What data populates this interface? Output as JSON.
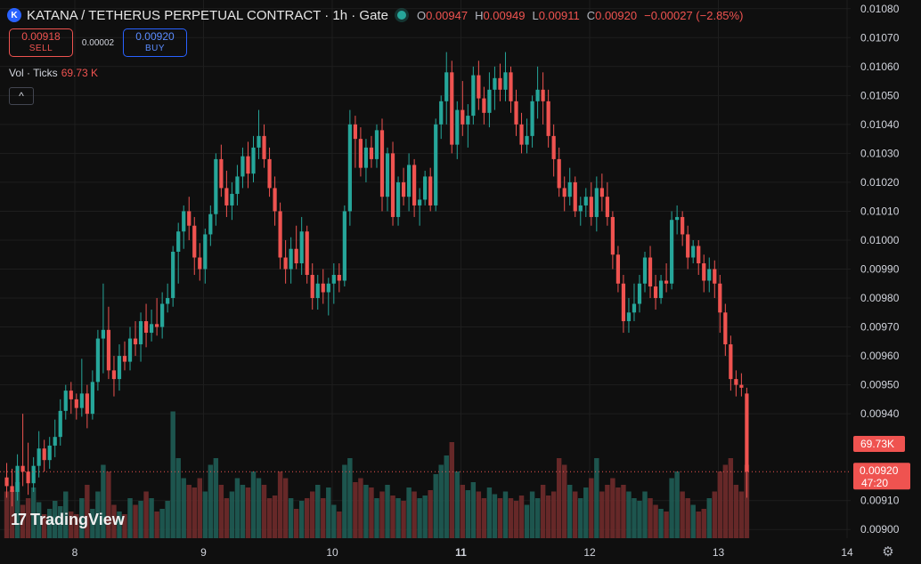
{
  "header": {
    "logo_letter": "K",
    "title": "KATANA / TETHERUS PERPETUAL CONTRACT · 1h · Gate",
    "ohlc": [
      {
        "k": "O",
        "v": "0.00947"
      },
      {
        "k": "H",
        "v": "0.00949"
      },
      {
        "k": "L",
        "v": "0.00911"
      },
      {
        "k": "C",
        "v": "0.00920"
      }
    ],
    "change": "−0.00027 (−2.85%)"
  },
  "trade": {
    "sell_price": "0.00918",
    "sell_label": "SELL",
    "spread": "0.00002",
    "buy_price": "0.00920",
    "buy_label": "BUY"
  },
  "volume_indicator": {
    "label": "Vol · Ticks",
    "value": "69.73 K"
  },
  "collapse_icon": "chevron-up-icon",
  "brand": {
    "mark": "17",
    "name": "TradingView"
  },
  "colors": {
    "up": "#26a69a",
    "down": "#ef5350",
    "background": "#0f0f0f",
    "buy": "#2962ff"
  },
  "price_axis": {
    "ticks": [
      "0.01080",
      "0.01070",
      "0.01060",
      "0.01050",
      "0.01040",
      "0.01030",
      "0.01020",
      "0.01010",
      "0.01000",
      "0.00990",
      "0.00980",
      "0.00970",
      "0.00960",
      "0.00950",
      "0.00940",
      "0.00910",
      "0.00900"
    ],
    "price_tag": "0.00920",
    "countdown": "47:20",
    "volume_tag": "69.73K"
  },
  "time_axis": {
    "labels": [
      "8",
      "9",
      "10",
      "11",
      "12",
      "13",
      "14"
    ]
  },
  "chart_data": {
    "type": "candlestick",
    "interval": "1h",
    "y_range": [
      0.00897,
      0.01083
    ],
    "x_start_day": 7.45,
    "x_end_day": 14,
    "bars": [
      [
        0.00918,
        0.00923,
        0.00911,
        0.00915,
        0.35
      ],
      [
        0.00915,
        0.00921,
        0.00908,
        0.00913,
        0.36
      ],
      [
        0.00913,
        0.00926,
        0.0091,
        0.00922,
        0.42
      ],
      [
        0.00922,
        0.0094,
        0.00915,
        0.0092,
        0.25
      ],
      [
        0.0092,
        0.0093,
        0.00912,
        0.00916,
        0.3
      ],
      [
        0.00916,
        0.00925,
        0.00913,
        0.00922,
        0.38
      ],
      [
        0.00922,
        0.00934,
        0.00918,
        0.00928,
        0.27
      ],
      [
        0.00928,
        0.00931,
        0.0092,
        0.00924,
        0.18
      ],
      [
        0.00924,
        0.00932,
        0.00921,
        0.00929,
        0.22
      ],
      [
        0.00929,
        0.00938,
        0.00925,
        0.00932,
        0.28
      ],
      [
        0.00932,
        0.00945,
        0.00929,
        0.00941,
        0.24
      ],
      [
        0.00941,
        0.0095,
        0.00938,
        0.00948,
        0.35
      ],
      [
        0.00948,
        0.00951,
        0.0094,
        0.00945,
        0.2
      ],
      [
        0.00945,
        0.00947,
        0.00938,
        0.00942,
        0.18
      ],
      [
        0.00942,
        0.00959,
        0.00939,
        0.00947,
        0.3
      ],
      [
        0.00947,
        0.0095,
        0.00935,
        0.0094,
        0.4
      ],
      [
        0.0094,
        0.00955,
        0.00938,
        0.00951,
        0.22
      ],
      [
        0.00951,
        0.00969,
        0.00948,
        0.00966,
        0.35
      ],
      [
        0.00966,
        0.00985,
        0.00954,
        0.00969,
        0.55
      ],
      [
        0.00969,
        0.00977,
        0.00952,
        0.00955,
        0.5
      ],
      [
        0.00955,
        0.0096,
        0.00946,
        0.00952,
        0.25
      ],
      [
        0.00952,
        0.00964,
        0.00948,
        0.0096,
        0.2
      ],
      [
        0.0096,
        0.00965,
        0.00955,
        0.00958,
        0.18
      ],
      [
        0.00958,
        0.0097,
        0.00955,
        0.00966,
        0.3
      ],
      [
        0.00966,
        0.00972,
        0.0096,
        0.00964,
        0.25
      ],
      [
        0.00964,
        0.00975,
        0.00958,
        0.00972,
        0.28
      ],
      [
        0.00972,
        0.00978,
        0.00963,
        0.00968,
        0.35
      ],
      [
        0.00968,
        0.00976,
        0.00965,
        0.00971,
        0.3
      ],
      [
        0.00971,
        0.0098,
        0.00967,
        0.0097,
        0.2
      ],
      [
        0.0097,
        0.00982,
        0.00966,
        0.00978,
        0.22
      ],
      [
        0.00978,
        0.00985,
        0.00975,
        0.0098,
        0.28
      ],
      [
        0.0098,
        0.00998,
        0.00977,
        0.00996,
        0.95
      ],
      [
        0.00996,
        0.01006,
        0.00985,
        0.01003,
        0.6
      ],
      [
        0.01003,
        0.01012,
        0.00997,
        0.0101,
        0.45
      ],
      [
        0.0101,
        0.01015,
        0.01,
        0.01005,
        0.4
      ],
      [
        0.01005,
        0.01008,
        0.00988,
        0.00994,
        0.38
      ],
      [
        0.00994,
        0.00999,
        0.00986,
        0.0099,
        0.45
      ],
      [
        0.0099,
        0.01004,
        0.00985,
        0.01002,
        0.35
      ],
      [
        0.01002,
        0.01012,
        0.00998,
        0.01009,
        0.55
      ],
      [
        0.01009,
        0.0103,
        0.01005,
        0.01028,
        0.6
      ],
      [
        0.01028,
        0.01033,
        0.01015,
        0.01018,
        0.4
      ],
      [
        0.01018,
        0.01024,
        0.01008,
        0.01012,
        0.3
      ],
      [
        0.01012,
        0.0102,
        0.01007,
        0.01016,
        0.35
      ],
      [
        0.01016,
        0.01026,
        0.01012,
        0.01022,
        0.45
      ],
      [
        0.01022,
        0.01032,
        0.01018,
        0.01029,
        0.4
      ],
      [
        0.01029,
        0.01034,
        0.01018,
        0.01023,
        0.38
      ],
      [
        0.01023,
        0.01036,
        0.0102,
        0.01032,
        0.5
      ],
      [
        0.01032,
        0.01045,
        0.01028,
        0.01036,
        0.45
      ],
      [
        0.01036,
        0.0104,
        0.01025,
        0.01028,
        0.4
      ],
      [
        0.01028,
        0.01032,
        0.01015,
        0.01018,
        0.3
      ],
      [
        0.01018,
        0.01022,
        0.01005,
        0.0101,
        0.32
      ],
      [
        0.0101,
        0.01013,
        0.0099,
        0.00994,
        0.5
      ],
      [
        0.00994,
        0.01,
        0.00985,
        0.0099,
        0.45
      ],
      [
        0.0099,
        0.01001,
        0.00985,
        0.00997,
        0.3
      ],
      [
        0.00997,
        0.01005,
        0.0099,
        0.00992,
        0.22
      ],
      [
        0.00992,
        0.01008,
        0.00988,
        0.01003,
        0.28
      ],
      [
        0.01003,
        0.01005,
        0.00985,
        0.00988,
        0.3
      ],
      [
        0.00988,
        0.00992,
        0.00976,
        0.0098,
        0.35
      ],
      [
        0.0098,
        0.00988,
        0.00976,
        0.00985,
        0.4
      ],
      [
        0.00985,
        0.0099,
        0.00978,
        0.00982,
        0.3
      ],
      [
        0.00982,
        0.00987,
        0.00974,
        0.00985,
        0.38
      ],
      [
        0.00985,
        0.00992,
        0.00978,
        0.00988,
        0.25
      ],
      [
        0.00988,
        0.00992,
        0.00982,
        0.00986,
        0.2
      ],
      [
        0.00986,
        0.01012,
        0.00984,
        0.0101,
        0.55
      ],
      [
        0.0101,
        0.01045,
        0.01005,
        0.0104,
        0.6
      ],
      [
        0.0104,
        0.01043,
        0.01025,
        0.01035,
        0.42
      ],
      [
        0.01035,
        0.01039,
        0.01022,
        0.01025,
        0.45
      ],
      [
        0.01025,
        0.01035,
        0.0102,
        0.01032,
        0.4
      ],
      [
        0.01032,
        0.01036,
        0.01025,
        0.01028,
        0.38
      ],
      [
        0.01028,
        0.0104,
        0.01025,
        0.01038,
        0.3
      ],
      [
        0.01038,
        0.01042,
        0.0101,
        0.01015,
        0.35
      ],
      [
        0.01015,
        0.01032,
        0.0101,
        0.0103,
        0.4
      ],
      [
        0.0103,
        0.01034,
        0.01005,
        0.01008,
        0.32
      ],
      [
        0.01008,
        0.01022,
        0.01005,
        0.0102,
        0.3
      ],
      [
        0.0102,
        0.01025,
        0.01012,
        0.01015,
        0.28
      ],
      [
        0.01015,
        0.0103,
        0.0101,
        0.01026,
        0.38
      ],
      [
        0.01026,
        0.01028,
        0.01008,
        0.01012,
        0.35
      ],
      [
        0.01012,
        0.01018,
        0.01005,
        0.01014,
        0.3
      ],
      [
        0.01014,
        0.01024,
        0.01012,
        0.01022,
        0.32
      ],
      [
        0.01022,
        0.01025,
        0.0101,
        0.01012,
        0.36
      ],
      [
        0.01012,
        0.01042,
        0.0101,
        0.0104,
        0.48
      ],
      [
        0.0104,
        0.0105,
        0.01035,
        0.01048,
        0.55
      ],
      [
        0.01048,
        0.01065,
        0.0104,
        0.01058,
        0.62
      ],
      [
        0.01058,
        0.01062,
        0.0103,
        0.01033,
        0.72
      ],
      [
        0.01033,
        0.01048,
        0.01028,
        0.01045,
        0.5
      ],
      [
        0.01045,
        0.01055,
        0.01036,
        0.0104,
        0.4
      ],
      [
        0.0104,
        0.01047,
        0.01032,
        0.01043,
        0.36
      ],
      [
        0.01043,
        0.0106,
        0.0104,
        0.01057,
        0.42
      ],
      [
        0.01057,
        0.01062,
        0.01045,
        0.01049,
        0.35
      ],
      [
        0.01049,
        0.01053,
        0.0104,
        0.01044,
        0.3
      ],
      [
        0.01044,
        0.01058,
        0.01039,
        0.01052,
        0.38
      ],
      [
        0.01052,
        0.0106,
        0.01045,
        0.01056,
        0.33
      ],
      [
        0.01056,
        0.01061,
        0.01048,
        0.01052,
        0.3
      ],
      [
        0.01052,
        0.01065,
        0.01048,
        0.01058,
        0.35
      ],
      [
        0.01058,
        0.0106,
        0.01044,
        0.01048,
        0.3
      ],
      [
        0.01048,
        0.01052,
        0.01036,
        0.0104,
        0.28
      ],
      [
        0.0104,
        0.01044,
        0.0103,
        0.01033,
        0.32
      ],
      [
        0.01033,
        0.01042,
        0.0103,
        0.01036,
        0.25
      ],
      [
        0.01036,
        0.0105,
        0.01032,
        0.01048,
        0.35
      ],
      [
        0.01048,
        0.0106,
        0.01042,
        0.01052,
        0.3
      ],
      [
        0.01052,
        0.01058,
        0.0104,
        0.01048,
        0.4
      ],
      [
        0.01048,
        0.01052,
        0.01032,
        0.01036,
        0.32
      ],
      [
        0.01036,
        0.0104,
        0.01022,
        0.01028,
        0.35
      ],
      [
        0.01028,
        0.01032,
        0.01015,
        0.01018,
        0.6
      ],
      [
        0.01018,
        0.01022,
        0.0101,
        0.01015,
        0.55
      ],
      [
        0.01015,
        0.01025,
        0.01012,
        0.0102,
        0.4
      ],
      [
        0.0102,
        0.01022,
        0.01008,
        0.0101,
        0.35
      ],
      [
        0.0101,
        0.01015,
        0.01005,
        0.01012,
        0.3
      ],
      [
        0.01012,
        0.01018,
        0.01008,
        0.01015,
        0.38
      ],
      [
        0.01015,
        0.0102,
        0.01005,
        0.01008,
        0.45
      ],
      [
        0.01008,
        0.01022,
        0.01003,
        0.01018,
        0.6
      ],
      [
        0.01018,
        0.01023,
        0.0101,
        0.01015,
        0.35
      ],
      [
        0.01015,
        0.0102,
        0.01005,
        0.01008,
        0.4
      ],
      [
        0.01008,
        0.0101,
        0.0099,
        0.00995,
        0.45
      ],
      [
        0.00995,
        0.00998,
        0.00982,
        0.00985,
        0.38
      ],
      [
        0.00985,
        0.00988,
        0.00968,
        0.00972,
        0.4
      ],
      [
        0.00972,
        0.0098,
        0.00968,
        0.00975,
        0.35
      ],
      [
        0.00975,
        0.00985,
        0.00972,
        0.00978,
        0.3
      ],
      [
        0.00978,
        0.00988,
        0.00975,
        0.00985,
        0.28
      ],
      [
        0.00985,
        0.00996,
        0.00982,
        0.00994,
        0.35
      ],
      [
        0.00994,
        0.00998,
        0.0098,
        0.00984,
        0.3
      ],
      [
        0.00984,
        0.00988,
        0.00976,
        0.0098,
        0.25
      ],
      [
        0.0098,
        0.00988,
        0.00978,
        0.00986,
        0.22
      ],
      [
        0.00986,
        0.00992,
        0.00982,
        0.00985,
        0.2
      ],
      [
        0.00985,
        0.0101,
        0.00983,
        0.01007,
        0.45
      ],
      [
        0.01007,
        0.01012,
        0.01002,
        0.01008,
        0.5
      ],
      [
        0.01008,
        0.0101,
        0.00998,
        0.01002,
        0.35
      ],
      [
        0.01002,
        0.01005,
        0.0099,
        0.00994,
        0.3
      ],
      [
        0.00994,
        0.01,
        0.00992,
        0.00998,
        0.25
      ],
      [
        0.00998,
        0.01,
        0.00988,
        0.00992,
        0.2
      ],
      [
        0.00992,
        0.00995,
        0.00982,
        0.00986,
        0.22
      ],
      [
        0.00986,
        0.00994,
        0.00982,
        0.0099,
        0.3
      ],
      [
        0.0099,
        0.00993,
        0.0098,
        0.00985,
        0.35
      ],
      [
        0.00985,
        0.00988,
        0.00968,
        0.00975,
        0.5
      ],
      [
        0.00975,
        0.00978,
        0.0096,
        0.00964,
        0.55
      ],
      [
        0.00964,
        0.00967,
        0.00948,
        0.00952,
        0.6
      ],
      [
        0.00952,
        0.00955,
        0.00946,
        0.0095,
        0.4
      ],
      [
        0.0095,
        0.00954,
        0.00946,
        0.00949,
        0.35
      ],
      [
        0.00947,
        0.00949,
        0.00911,
        0.0092,
        0.55
      ]
    ]
  }
}
